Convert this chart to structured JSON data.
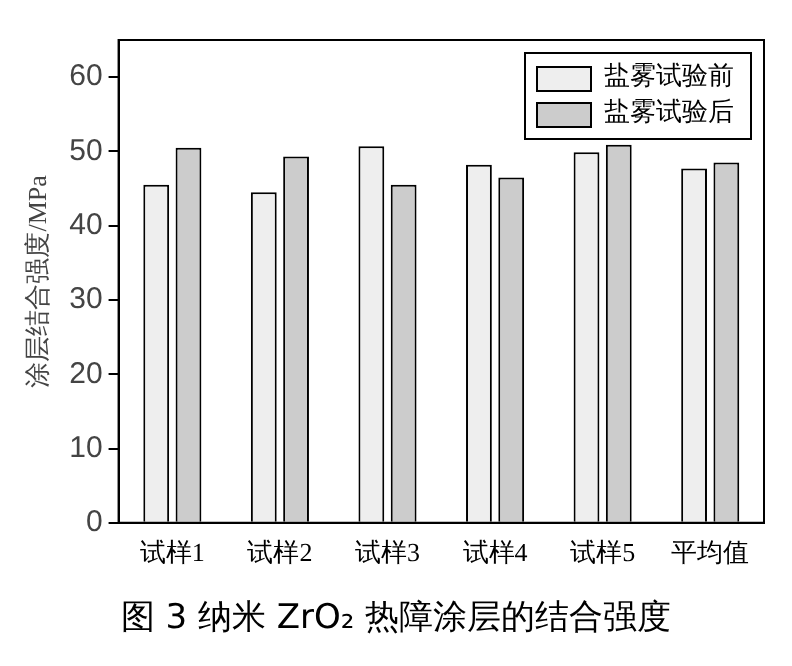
{
  "chart_data": {
    "type": "bar",
    "title": "图 3 纳米 ZrO₂ 热障涂层的结合强度",
    "ylabel": "涂层结合强度/MPa",
    "categories": [
      "试样1",
      "试样2",
      "试样3",
      "试样4",
      "试样5",
      "平均值"
    ],
    "series": [
      {
        "name": "盐雾试验前",
        "color": "#eeeeee",
        "values": [
          45.5,
          44.5,
          50.7,
          48.2,
          49.9,
          47.7
        ]
      },
      {
        "name": "盐雾试验后",
        "color": "#cccccc",
        "values": [
          50.5,
          49.3,
          45.5,
          46.5,
          50.9,
          48.5
        ]
      }
    ],
    "ylim": [
      0,
      65
    ],
    "yticks": [
      0,
      10,
      20,
      30,
      40,
      50,
      60
    ],
    "grid": false,
    "legend": "top right"
  }
}
